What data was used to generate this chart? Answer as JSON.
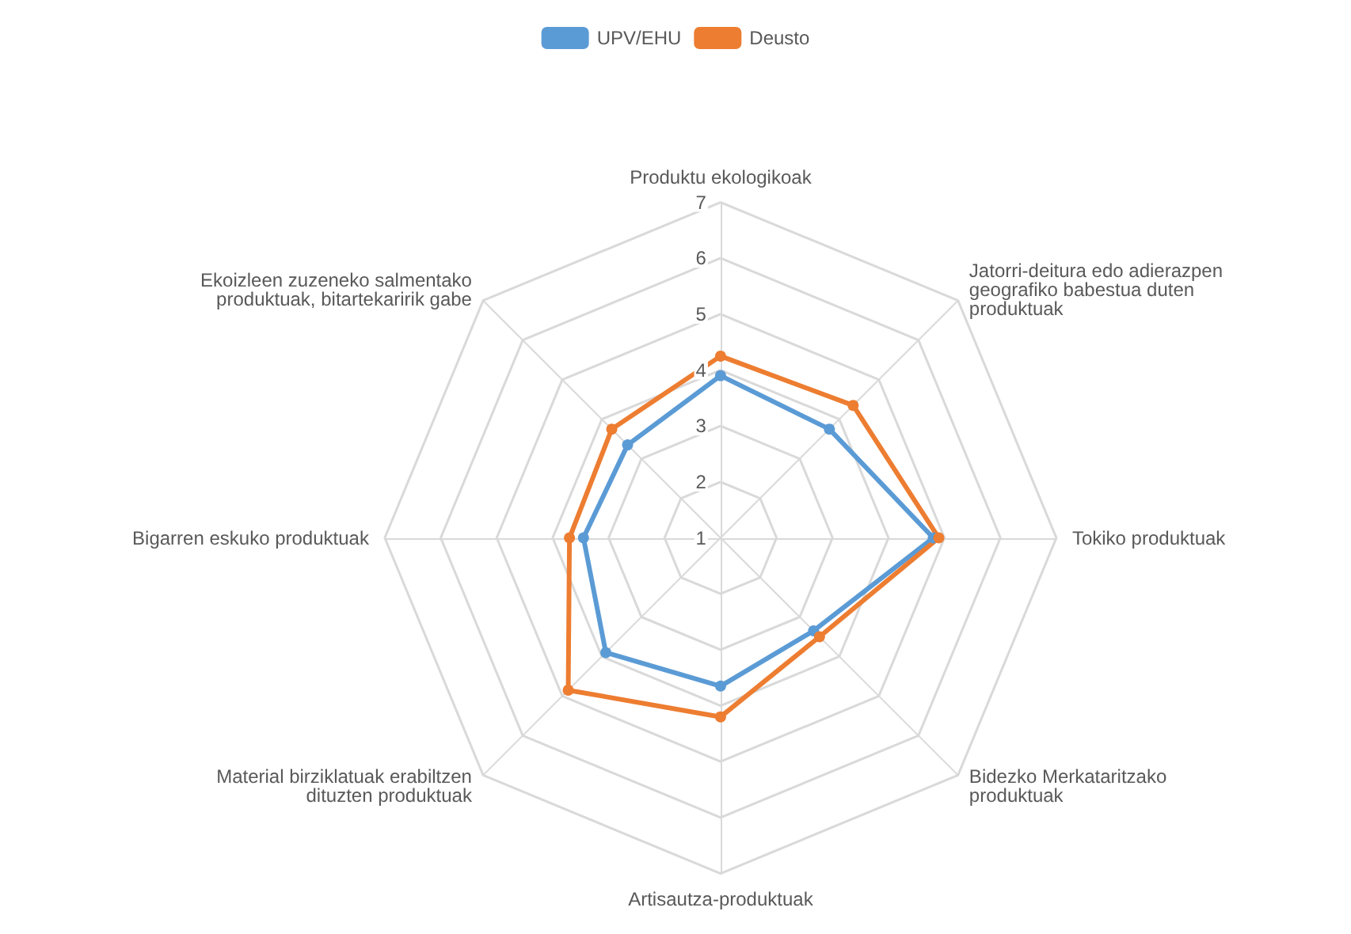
{
  "chart_data": {
    "type": "radar",
    "categories": [
      "Produktu ekologikoak",
      "Jatorri-deitura edo adierazpen geografiko babestua duten produktuak",
      "Tokiko produktuak",
      "Bidezko Merkataritzako produktuak",
      "Artisautza-produktuak",
      "Material birziklatuak erabiltzen dituzten produktuak",
      "Bigarren eskuko produktuak",
      "Ekoizleen zuzeneko salmentako produktuak, bitartekaririk gabe"
    ],
    "series": [
      {
        "name": "UPV/EHU",
        "color": "#5b9bd5",
        "values": [
          3.9,
          3.75,
          4.8,
          3.35,
          3.65,
          3.9,
          3.45,
          3.35
        ]
      },
      {
        "name": "Deusto",
        "color": "#ed7d31",
        "values": [
          4.25,
          4.35,
          4.9,
          3.5,
          4.2,
          4.85,
          3.7,
          3.75
        ]
      }
    ],
    "ylim": [
      1,
      7
    ],
    "yticks": [
      1,
      2,
      3,
      4,
      5,
      6,
      7
    ],
    "legend": "top",
    "marker": "circle",
    "line_style": "solid"
  }
}
